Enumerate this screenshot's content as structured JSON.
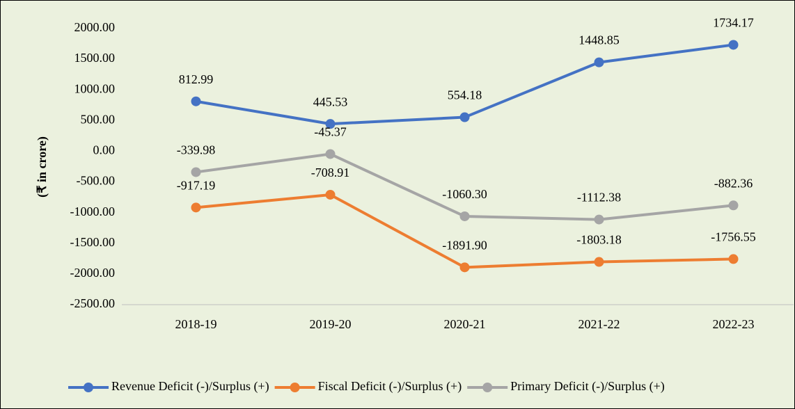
{
  "chart_data": {
    "type": "line",
    "categories": [
      "2018-19",
      "2019-20",
      "2020-21",
      "2021-22",
      "2022-23"
    ],
    "y_label": "(₹ in crore)",
    "ylim": [
      -2500,
      2000
    ],
    "yticks": [
      {
        "value": 2000,
        "label": "2000.00"
      },
      {
        "value": 1500,
        "label": "1500.00"
      },
      {
        "value": 1000,
        "label": "1000.00"
      },
      {
        "value": 500,
        "label": "500.00"
      },
      {
        "value": 0,
        "label": "0.00"
      },
      {
        "value": -500,
        "label": "-500.00"
      },
      {
        "value": -1000,
        "label": "-1000.00"
      },
      {
        "value": -1500,
        "label": "-1500.00"
      },
      {
        "value": -2000,
        "label": "-2000.00"
      },
      {
        "value": -2500,
        "label": "-2500.00"
      }
    ],
    "grid": false,
    "legend": "bottom",
    "series": [
      {
        "name": "Revenue Deficit (-)/Surplus (+)",
        "color": "#4472c4",
        "values": [
          812.99,
          445.53,
          554.18,
          1448.85,
          1734.17
        ],
        "value_labels": [
          "812.99",
          "445.53",
          "554.18",
          "1448.85",
          "1734.17"
        ]
      },
      {
        "name": "Fiscal Deficit (-)/Surplus (+)",
        "color": "#ed7d31",
        "values": [
          -917.19,
          -708.91,
          -1891.9,
          -1803.18,
          -1756.55
        ],
        "value_labels": [
          "-917.19",
          "-708.91",
          "-1891.90",
          "-1803.18",
          "-1756.55"
        ]
      },
      {
        "name": "Primary Deficit (-)/Surplus (+)",
        "color": "#a5a5a5",
        "values": [
          -339.98,
          -45.37,
          -1060.3,
          -1112.38,
          -882.36
        ],
        "value_labels": [
          "-339.98",
          "-45.37",
          "-1060.30",
          "-1112.38",
          "-882.36"
        ]
      }
    ]
  }
}
